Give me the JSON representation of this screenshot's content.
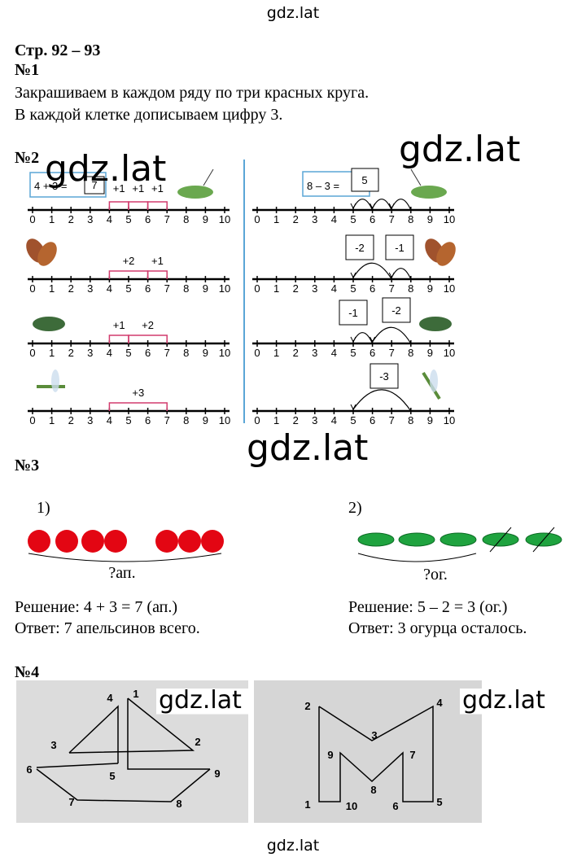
{
  "watermark": "gdz.lat",
  "header": {
    "pages": "Стр. 92 – 93"
  },
  "task1": {
    "number": "№1",
    "lines": [
      "Закрашиваем в каждом ряду по три красных круга.",
      "В каждой клетке дописываем цифру 3."
    ]
  },
  "task2": {
    "number": "№2",
    "number_line_labels": [
      "0",
      "1",
      "2",
      "3",
      "4",
      "5",
      "6",
      "7",
      "8",
      "9",
      "10"
    ],
    "left": {
      "equation": "4 + 3 =",
      "answer": "7",
      "step_rows": [
        [
          "+1",
          "+1",
          "+1"
        ],
        [
          "+2",
          "+1"
        ],
        [
          "+1",
          "+2"
        ],
        [
          "+3"
        ]
      ]
    },
    "right": {
      "equation": "8 – 3 =",
      "answer": "5",
      "step_rows": [
        [
          "-2",
          "-1"
        ],
        [
          "-1",
          "-2"
        ],
        [
          "-3"
        ]
      ]
    }
  },
  "task3": {
    "number": "№3",
    "part1": {
      "label": "1)",
      "question": "?ап.",
      "solution": "Решение: 4 + 3 = 7 (ап.)",
      "answer": "Ответ: 7 апельсинов всего."
    },
    "part2": {
      "label": "2)",
      "question": "?ог.",
      "solution": "Решение: 5 – 2 = 3 (ог.)",
      "answer": "Ответ: 3 огурца осталось."
    }
  },
  "task4": {
    "number": "№4",
    "left_points": [
      "4",
      "1",
      "3",
      "2",
      "6",
      "5",
      "9",
      "7",
      "8"
    ],
    "right_points": [
      "2",
      "4",
      "3",
      "9",
      "7",
      "8",
      "1",
      "10",
      "6",
      "5"
    ]
  }
}
